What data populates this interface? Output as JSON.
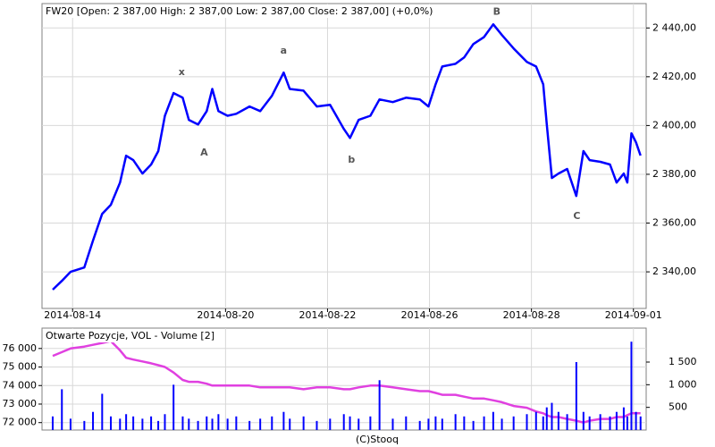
{
  "chart_data": [
    {
      "type": "line",
      "title": "FW20 [Open: 2 387,00  High: 2 387,00  Low: 2 387,00  Close: 2 387,00] (+0,0%)",
      "x": [
        -0.39,
        -0.21,
        -0.04,
        0.23,
        0.4,
        0.58,
        0.75,
        0.93,
        1.05,
        1.19,
        1.37,
        1.54,
        1.68,
        1.81,
        1.98,
        2.16,
        2.28,
        2.46,
        2.63,
        2.74,
        2.86,
        3.04,
        3.21,
        3.47,
        3.68,
        3.91,
        4.14,
        4.26,
        4.53,
        4.79,
        5.05,
        5.32,
        5.44,
        5.61,
        5.84,
        6.02,
        6.28,
        6.54,
        6.81,
        6.98,
        7.12,
        7.25,
        7.51,
        7.68,
        7.86,
        8.07,
        8.25,
        8.42,
        8.65,
        8.91,
        9.09,
        9.23,
        9.3,
        9.4,
        9.53,
        9.7,
        9.88,
        10.02,
        10.14,
        10.35,
        10.54,
        10.67,
        10.81,
        10.88,
        10.96,
        11.05,
        11.14
      ],
      "series": [
        {
          "color": "#0000ff",
          "values": [
            2332.7,
            2336.3,
            2340,
            2341.8,
            2352.8,
            2363.8,
            2367.5,
            2376.6,
            2387.6,
            2385.8,
            2380.3,
            2384,
            2389.5,
            2404,
            2413.3,
            2411.4,
            2402.3,
            2400.4,
            2405.9,
            2415,
            2405.9,
            2404,
            2404.8,
            2407.8,
            2405.9,
            2412.2,
            2421.7,
            2415,
            2414.3,
            2407.8,
            2408.5,
            2398.6,
            2394.9,
            2402.3,
            2404,
            2410.7,
            2409.6,
            2411.4,
            2410.7,
            2407.8,
            2416.9,
            2424.2,
            2425.3,
            2427.9,
            2433.4,
            2436.3,
            2441.5,
            2437.1,
            2431.6,
            2426.1,
            2424.2,
            2416.9,
            2400.4,
            2378.5,
            2380.3,
            2382.2,
            2371.1,
            2389.5,
            2385.8,
            2385.1,
            2384,
            2376.6,
            2380.3,
            2376.6,
            2396.8,
            2393.1,
            2387.7
          ]
        }
      ],
      "xlim": [
        -0.6,
        11.25
      ],
      "xticks": [
        {
          "value": 0,
          "label": "2014-08-14"
        },
        {
          "value": 3,
          "label": "2014-08-20"
        },
        {
          "value": 5,
          "label": "2014-08-22"
        },
        {
          "value": 7,
          "label": "2014-08-26"
        },
        {
          "value": 9,
          "label": "2014-08-28"
        },
        {
          "value": 11,
          "label": "2014-09-01"
        }
      ],
      "ylim": [
        2325,
        2450
      ],
      "yticks": [
        {
          "value": 2340,
          "label": "2 340,00"
        },
        {
          "value": 2360,
          "label": "2 360,00"
        },
        {
          "value": 2380,
          "label": "2 380,00"
        },
        {
          "value": 2400,
          "label": "2 400,00"
        },
        {
          "value": 2420,
          "label": "2 420,00"
        },
        {
          "value": 2440,
          "label": "2 440,00"
        }
      ],
      "grid": true,
      "annotations": [
        {
          "text": "x",
          "x": 2.14,
          "y": 2421.7
        },
        {
          "text": "A",
          "x": 2.58,
          "y": 2388.7
        },
        {
          "text": "a",
          "x": 4.14,
          "y": 2430.5
        },
        {
          "text": "b",
          "x": 5.47,
          "y": 2385.8
        },
        {
          "text": "B",
          "x": 8.32,
          "y": 2446.6
        },
        {
          "text": "C",
          "x": 9.89,
          "y": 2362.7
        }
      ]
    },
    {
      "type": "bar",
      "title": "Otwarte Pozycje, VOL - Volume [2]",
      "x": [
        -0.39,
        -0.21,
        -0.04,
        0.23,
        0.4,
        0.58,
        0.75,
        0.93,
        1.05,
        1.19,
        1.37,
        1.54,
        1.68,
        1.81,
        1.98,
        2.16,
        2.28,
        2.46,
        2.63,
        2.74,
        2.86,
        3.04,
        3.21,
        3.47,
        3.68,
        3.91,
        4.14,
        4.26,
        4.53,
        4.79,
        5.05,
        5.32,
        5.44,
        5.61,
        5.84,
        6.02,
        6.28,
        6.54,
        6.81,
        6.98,
        7.12,
        7.25,
        7.51,
        7.68,
        7.86,
        8.07,
        8.25,
        8.42,
        8.65,
        8.91,
        9.09,
        9.23,
        9.3,
        9.4,
        9.53,
        9.7,
        9.88,
        10.02,
        10.14,
        10.35,
        10.54,
        10.67,
        10.81,
        10.88,
        10.96,
        11.05,
        11.14
      ],
      "series": [
        {
          "type": "line",
          "color": "#e040e0",
          "values": [
            75600,
            75800,
            76000,
            76100,
            76200,
            76300,
            76400,
            75900,
            75500,
            75400,
            75300,
            75200,
            75100,
            75000,
            74700,
            74300,
            74200,
            74200,
            74100,
            74000,
            74000,
            74000,
            74000,
            74000,
            73900,
            73900,
            73900,
            73900,
            73800,
            73900,
            73900,
            73800,
            73800,
            73900,
            74000,
            74000,
            73900,
            73800,
            73700,
            73700,
            73600,
            73500,
            73500,
            73400,
            73300,
            73300,
            73200,
            73100,
            72900,
            72800,
            72600,
            72500,
            72400,
            72300,
            72300,
            72200,
            72100,
            72000,
            72100,
            72200,
            72200,
            72300,
            72300,
            72400,
            72500,
            72500,
            72500
          ]
        },
        {
          "color": "#0000ff",
          "axis": "y2",
          "values": [
            300,
            900,
            250,
            200,
            400,
            800,
            300,
            250,
            350,
            300,
            250,
            300,
            200,
            350,
            1000,
            300,
            250,
            200,
            300,
            250,
            350,
            250,
            300,
            200,
            250,
            300,
            400,
            250,
            300,
            200,
            250,
            350,
            300,
            250,
            300,
            1100,
            250,
            300,
            200,
            250,
            300,
            250,
            350,
            300,
            200,
            300,
            400,
            250,
            300,
            350,
            400,
            300,
            500,
            600,
            400,
            350,
            1500,
            400,
            300,
            350,
            300,
            400,
            500,
            300,
            1950,
            400,
            300
          ]
        }
      ],
      "xlim": [
        -0.6,
        11.25
      ],
      "ylim": [
        71600,
        77100
      ],
      "yticks": [
        {
          "value": 72000,
          "label": "72 000"
        },
        {
          "value": 73000,
          "label": "73 000"
        },
        {
          "value": 74000,
          "label": "74 000"
        },
        {
          "value": 75000,
          "label": "75 000"
        },
        {
          "value": 76000,
          "label": "76 000"
        }
      ],
      "y2lim": [
        0,
        2250
      ],
      "y2ticks": [
        500,
        {
          "value": 1000,
          "label": "1 000"
        },
        {
          "value": 1500,
          "label": "1 500"
        }
      ],
      "grid": true
    }
  ],
  "footer": "(C)Stooq"
}
